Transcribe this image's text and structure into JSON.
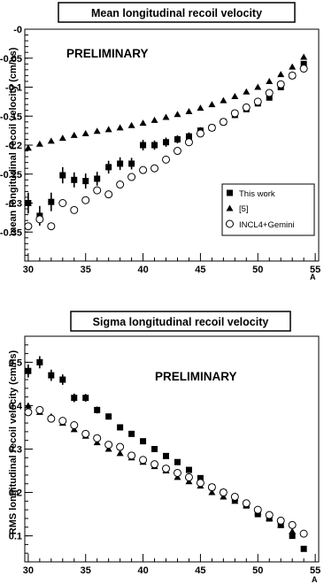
{
  "chart_data": [
    {
      "type": "scatter",
      "title": "Mean longitudinal recoil velocity",
      "xlabel": "A",
      "ylabel": "mean longitudinal recoil velocity (cm/ns)",
      "annotation": "PRELIMINARY",
      "xlim": [
        29.7,
        55.3
      ],
      "ylim": [
        -0.4,
        0
      ],
      "x_ticks": [
        30,
        35,
        40,
        45,
        50,
        55
      ],
      "y_ticks": [
        0,
        -0.05,
        -0.1,
        -0.15,
        -0.2,
        -0.25,
        -0.3,
        -0.35
      ],
      "y_tick_labels": [
        "-0",
        "-0.05",
        "-0.1",
        "-0.15",
        "-0.2",
        "-0.25",
        "-0.3",
        "-0.35"
      ],
      "grid": false,
      "legend_placement": "bottom-right",
      "series": [
        {
          "name": "This work",
          "marker": "square",
          "x": [
            30,
            31,
            32,
            33,
            34,
            35,
            36,
            37,
            38,
            39,
            40,
            41,
            42,
            43,
            44,
            45,
            46,
            47,
            48,
            49,
            50,
            51,
            52,
            53,
            54
          ],
          "y": [
            -0.3,
            -0.322,
            -0.298,
            -0.252,
            -0.26,
            -0.262,
            -0.258,
            -0.238,
            -0.232,
            -0.232,
            -0.2,
            -0.2,
            -0.195,
            -0.19,
            -0.185,
            -0.175,
            -0.17,
            -0.16,
            -0.148,
            -0.138,
            -0.128,
            -0.118,
            -0.1,
            -0.08,
            -0.06
          ],
          "yerr": [
            0.018,
            0.017,
            0.016,
            0.014,
            0.013,
            0.013,
            0.012,
            0.011,
            0.011,
            0.01,
            0.009,
            0.008,
            0.008,
            0.007,
            0.007,
            0.006,
            0.006,
            0.006,
            0.005,
            0.005,
            0.005,
            0.005,
            0.005,
            0.005,
            0.005
          ]
        },
        {
          "name": "[5]",
          "marker": "triangle",
          "x": [
            30,
            31,
            32,
            33,
            34,
            35,
            36,
            37,
            38,
            39,
            40,
            41,
            42,
            43,
            44,
            45,
            46,
            47,
            48,
            49,
            50,
            51,
            52,
            53,
            54
          ],
          "y": [
            -0.205,
            -0.198,
            -0.193,
            -0.188,
            -0.183,
            -0.18,
            -0.176,
            -0.173,
            -0.17,
            -0.166,
            -0.162,
            -0.157,
            -0.152,
            -0.147,
            -0.142,
            -0.136,
            -0.13,
            -0.123,
            -0.116,
            -0.108,
            -0.1,
            -0.09,
            -0.078,
            -0.065,
            -0.048
          ]
        },
        {
          "name": "INCL4+Gemini",
          "marker": "open-circle",
          "x": [
            30,
            31,
            32,
            33,
            34,
            35,
            36,
            37,
            38,
            39,
            40,
            41,
            42,
            43,
            44,
            45,
            46,
            47,
            48,
            49,
            50,
            51,
            52,
            53,
            54
          ],
          "y": [
            -0.34,
            -0.328,
            -0.34,
            -0.3,
            -0.312,
            -0.295,
            -0.278,
            -0.285,
            -0.268,
            -0.255,
            -0.243,
            -0.24,
            -0.225,
            -0.21,
            -0.195,
            -0.18,
            -0.17,
            -0.16,
            -0.145,
            -0.135,
            -0.125,
            -0.11,
            -0.095,
            -0.08,
            -0.068
          ]
        }
      ]
    },
    {
      "type": "scatter",
      "title": "Sigma longitudinal recoil velocity",
      "xlabel": "A",
      "ylabel": "RMS longitudinal recoil  velocity (cm/ns)",
      "annotation": "PRELIMINARY",
      "xlim": [
        29.7,
        55.3
      ],
      "ylim": [
        0.04,
        0.56
      ],
      "x_ticks": [
        30,
        35,
        40,
        45,
        50,
        55
      ],
      "y_ticks": [
        0.1,
        0.2,
        0.3,
        0.4,
        0.5
      ],
      "y_tick_labels": [
        "0.1",
        "0.2",
        "0.3",
        "0.4",
        "0.5"
      ],
      "grid": false,
      "series": [
        {
          "marker": "square",
          "x": [
            30,
            31,
            32,
            33,
            34,
            35,
            36,
            37,
            38,
            39,
            40,
            41,
            42,
            43,
            44,
            45,
            46,
            47,
            48,
            49,
            50,
            51,
            52,
            53,
            54
          ],
          "y": [
            0.48,
            0.5,
            0.47,
            0.46,
            0.418,
            0.418,
            0.39,
            0.375,
            0.35,
            0.335,
            0.318,
            0.3,
            0.284,
            0.27,
            0.252,
            0.233,
            0.212,
            0.2,
            0.185,
            0.17,
            0.15,
            0.14,
            0.125,
            0.1,
            0.07
          ],
          "yerr": [
            0.015,
            0.014,
            0.013,
            0.012,
            0.01,
            0.009,
            0.008,
            0.007,
            0.006,
            0.006,
            0.005,
            0.005,
            0.005,
            0.005,
            0.005,
            0.005,
            0.005,
            0.005,
            0.005,
            0.005,
            0.005,
            0.005,
            0.005,
            0.005,
            0.005
          ]
        },
        {
          "marker": "triangle",
          "x": [
            30,
            31,
            32,
            33,
            34,
            35,
            36,
            37,
            38,
            39,
            40,
            41,
            42,
            43,
            44,
            45,
            46,
            47,
            48,
            49,
            50,
            51,
            52,
            53,
            54
          ],
          "y": [
            0.4,
            0.385,
            0.375,
            0.36,
            0.345,
            0.33,
            0.315,
            0.3,
            0.29,
            0.28,
            0.27,
            0.26,
            0.25,
            0.235,
            0.225,
            0.215,
            0.2,
            0.19,
            0.18,
            0.17,
            0.155,
            0.14,
            0.125,
            0.11,
            null
          ]
        },
        {
          "marker": "open-circle",
          "x": [
            30,
            31,
            32,
            33,
            34,
            35,
            36,
            37,
            38,
            39,
            40,
            41,
            42,
            43,
            44,
            45,
            46,
            47,
            48,
            49,
            50,
            51,
            52,
            53,
            54
          ],
          "y": [
            0.385,
            0.39,
            0.37,
            0.365,
            0.355,
            0.335,
            0.325,
            0.31,
            0.305,
            0.285,
            0.275,
            0.265,
            0.255,
            0.245,
            0.235,
            0.222,
            0.212,
            0.2,
            0.19,
            0.175,
            0.16,
            0.148,
            0.135,
            0.125,
            0.105
          ]
        }
      ]
    }
  ]
}
